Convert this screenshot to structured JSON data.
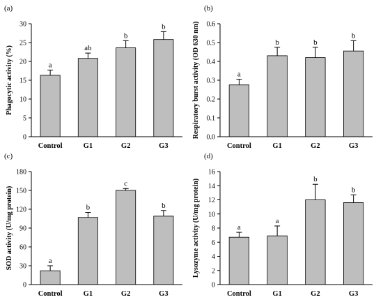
{
  "figure": {
    "bar_color": "#bebebe",
    "bar_stroke": "#000000",
    "axis_color": "#000000",
    "background": "#ffffff"
  },
  "chart_data": [
    {
      "type": "bar",
      "panel": "(a)",
      "categories": [
        "Control",
        "G1",
        "G2",
        "G3"
      ],
      "values": [
        16.3,
        20.8,
        23.6,
        25.8
      ],
      "errors": [
        1.4,
        1.4,
        1.9,
        2.1
      ],
      "significance": [
        "a",
        "ab",
        "b",
        "b"
      ],
      "ylabel": "Phagocytic activity (%)",
      "ylim": [
        0,
        30
      ],
      "yticks": [
        "0",
        "5",
        "10",
        "15",
        "20",
        "25",
        "30"
      ]
    },
    {
      "type": "bar",
      "panel": "(b)",
      "categories": [
        "Control",
        "G1",
        "G2",
        "G3"
      ],
      "values": [
        0.275,
        0.43,
        0.42,
        0.455
      ],
      "errors": [
        0.03,
        0.045,
        0.055,
        0.055
      ],
      "significance": [
        "a",
        "b",
        "b",
        "b"
      ],
      "ylabel": "Respiratory burst activity (OD 630 nm)",
      "ylim": [
        0,
        0.6
      ],
      "yticks": [
        "0.0",
        "0.1",
        "0.2",
        "0.3",
        "0.4",
        "0.5",
        "0.6"
      ]
    },
    {
      "type": "bar",
      "panel": "(c)",
      "categories": [
        "Control",
        "G1",
        "G2",
        "G3"
      ],
      "values": [
        22,
        107,
        150,
        109
      ],
      "errors": [
        8,
        8,
        3,
        9
      ],
      "significance": [
        "a",
        "b",
        "c",
        "b"
      ],
      "ylabel": "SOD activity (U/mg protein)",
      "ylim": [
        0,
        180
      ],
      "yticks": [
        "0",
        "30",
        "60",
        "90",
        "120",
        "150",
        "180"
      ]
    },
    {
      "type": "bar",
      "panel": "(d)",
      "categories": [
        "Control",
        "G1",
        "G2",
        "G3"
      ],
      "values": [
        6.7,
        6.9,
        12.0,
        11.6
      ],
      "errors": [
        0.7,
        1.4,
        2.2,
        1.1
      ],
      "significance": [
        "a",
        "a",
        "b",
        "b"
      ],
      "ylabel": "Lysozyme activity (U/mg protein)",
      "ylim": [
        0,
        16
      ],
      "yticks": [
        "0",
        "2",
        "4",
        "6",
        "8",
        "10",
        "12",
        "14",
        "16"
      ]
    }
  ]
}
